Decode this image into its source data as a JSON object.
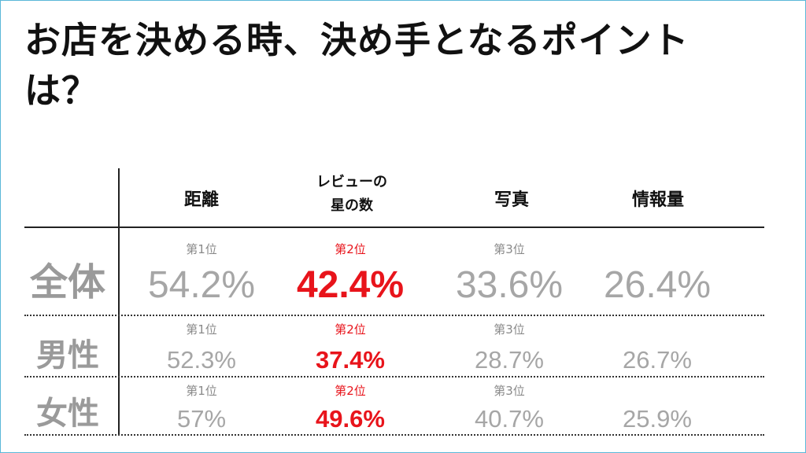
{
  "title": "お店を決める時、決め手となるポイントは？",
  "columns": [
    "距離",
    "レビューの\n星の数",
    "写真",
    "情報量"
  ],
  "column_line1": [
    "距離",
    "レビューの",
    "写真",
    "情報量"
  ],
  "column_line2": [
    "",
    "星の数",
    "",
    ""
  ],
  "rows": [
    {
      "label": "全体",
      "ranks": [
        "第1位",
        "第2位",
        "第3位",
        ""
      ],
      "values": [
        "54.2%",
        "42.4%",
        "33.6%",
        "26.4%"
      ]
    },
    {
      "label": "男性",
      "ranks": [
        "第1位",
        "第2位",
        "第3位",
        ""
      ],
      "values": [
        "52.3%",
        "37.4%",
        "28.7%",
        "26.7%"
      ]
    },
    {
      "label": "女性",
      "ranks": [
        "第1位",
        "第2位",
        "第3位",
        ""
      ],
      "values": [
        "57%",
        "49.6%",
        "40.7%",
        "25.9%"
      ]
    }
  ],
  "highlight_column": 1,
  "colors": {
    "highlight": "#e8141b",
    "muted": "#a6a6a6",
    "border": "#5bb8d8"
  }
}
